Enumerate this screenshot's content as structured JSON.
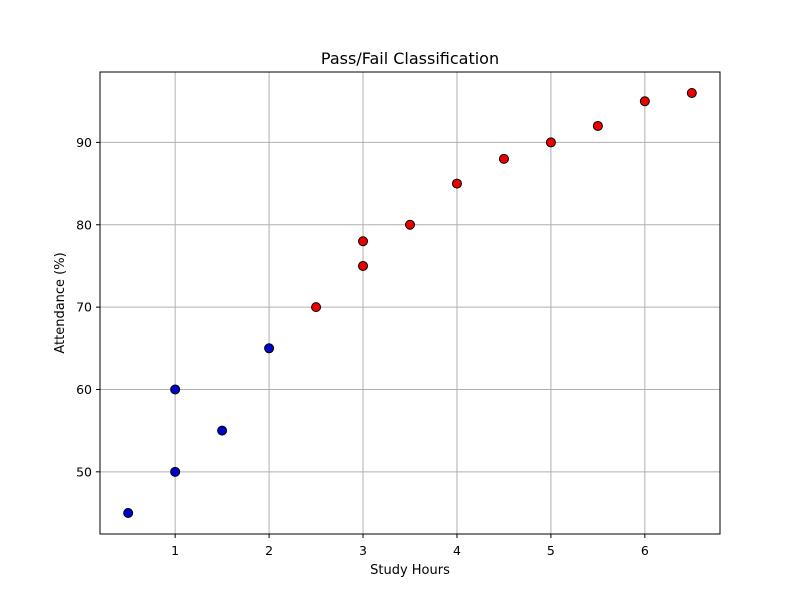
{
  "chart_data": {
    "type": "scatter",
    "title": "Pass/Fail Classification",
    "xlabel": "Study Hours",
    "ylabel": "Attendance (%)",
    "xlim": [
      0.2,
      6.8
    ],
    "ylim": [
      42.45,
      98.55
    ],
    "xticks": [
      1,
      2,
      3,
      4,
      5,
      6
    ],
    "yticks": [
      50,
      60,
      70,
      80,
      90
    ],
    "grid": true,
    "series": [
      {
        "color": "#0000cc",
        "points": [
          {
            "x": 0.5,
            "y": 45
          },
          {
            "x": 1.0,
            "y": 50
          },
          {
            "x": 1.0,
            "y": 60
          },
          {
            "x": 1.5,
            "y": 55
          },
          {
            "x": 2.0,
            "y": 65
          }
        ]
      },
      {
        "color": "#ee0000",
        "points": [
          {
            "x": 2.5,
            "y": 70
          },
          {
            "x": 3.0,
            "y": 75
          },
          {
            "x": 3.0,
            "y": 78
          },
          {
            "x": 3.5,
            "y": 80
          },
          {
            "x": 4.0,
            "y": 85
          },
          {
            "x": 4.5,
            "y": 88
          },
          {
            "x": 5.0,
            "y": 90
          },
          {
            "x": 5.5,
            "y": 92
          },
          {
            "x": 6.0,
            "y": 95
          },
          {
            "x": 6.5,
            "y": 96
          }
        ]
      }
    ]
  }
}
